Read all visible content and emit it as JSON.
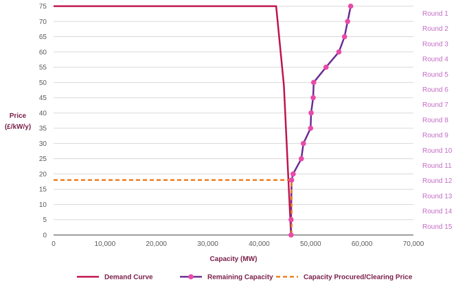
{
  "chart_data": {
    "type": "line",
    "xlabel": "Capacity (MW)",
    "ylabel": [
      "Price",
      "(£/kW/y)"
    ],
    "xlim": [
      0,
      70000
    ],
    "ylim": [
      0,
      75
    ],
    "x_ticks": [
      0,
      10000,
      20000,
      30000,
      40000,
      50000,
      60000,
      70000
    ],
    "x_tick_labels": [
      "0",
      "10,000",
      "20,000",
      "30,000",
      "40,000",
      "50,000",
      "60,000",
      "70,000"
    ],
    "y_ticks": [
      0,
      5,
      10,
      15,
      20,
      25,
      30,
      35,
      40,
      45,
      50,
      55,
      60,
      65,
      70,
      75
    ],
    "grid": "horizontal",
    "legend_position": "bottom",
    "round_labels": [
      "Round 1",
      "Round 2",
      "Round 3",
      "Round 4",
      "Round 5",
      "Round 6",
      "Round 7",
      "Round 8",
      "Round 9",
      "Round 10",
      "Round 11",
      "Round 12",
      "Round 13",
      "Round 14",
      "Round 15"
    ],
    "series": [
      {
        "name": "Demand Curve",
        "color": "#c0144c",
        "style": "solid",
        "x": [
          0,
          43300,
          44800,
          46200,
          46200
        ],
        "y": [
          75,
          75,
          49,
          0,
          0
        ]
      },
      {
        "name": "Remaining Capacity",
        "color": "#6a2c91",
        "marker_color": "#e94aa8",
        "style": "solid-markers",
        "x": [
          57800,
          57200,
          56600,
          55500,
          53000,
          50600,
          50500,
          50100,
          50000,
          48600,
          48200,
          46600,
          46300,
          46200,
          46200
        ],
        "y": [
          75,
          70,
          65,
          60,
          55,
          50,
          45,
          40,
          35,
          30,
          25,
          20,
          18,
          5,
          0
        ]
      },
      {
        "name": "Capacity Procured/Clearing Price",
        "color": "#f07d20",
        "style": "dashed",
        "x": [
          0,
          46300,
          46300
        ],
        "y": [
          18,
          18,
          0
        ]
      }
    ]
  }
}
